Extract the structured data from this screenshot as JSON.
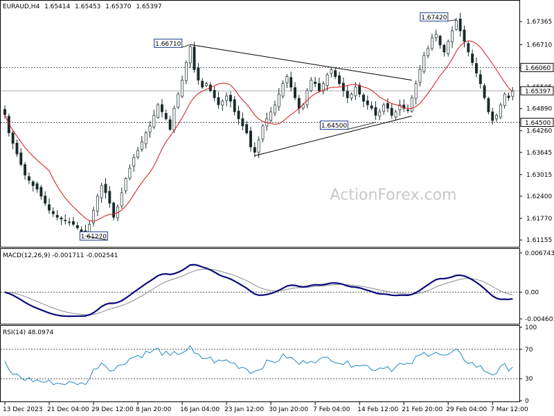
{
  "chart_data": {
    "type": "candlestick",
    "symbol": "EURAUD,H4",
    "ohlc": [
      "1.65414",
      "1.65453",
      "1.65370",
      "1.65397"
    ],
    "watermark": "ActionForex.com",
    "price_pane": {
      "ylim": [
        1.61,
        1.679
      ],
      "y_ticks": [
        "1.67365",
        "1.66710",
        "1.66060",
        "1.65505",
        "1.64890",
        "1.64260",
        "1.63645",
        "1.63015",
        "1.62400",
        "1.61770",
        "1.61155"
      ],
      "dashed_levels": [
        1.6606,
        1.645
      ],
      "current_price": 1.65397,
      "level_labels": [
        {
          "text": "1.66060",
          "value": 1.6606
        },
        {
          "text": "1.65397",
          "value": 1.65397
        },
        {
          "text": "1.64500",
          "value": 1.645
        }
      ],
      "annotations": [
        {
          "text": "1.67420",
          "bar": 112,
          "value": 1.6742
        },
        {
          "text": "1.66710",
          "bar": 46,
          "value": 1.6671
        },
        {
          "text": "1.64500",
          "bar": 92,
          "value": 1.645
        },
        {
          "text": "1.61270",
          "bar": 20,
          "value": 1.6127
        }
      ],
      "trendlines": [
        {
          "from": [
            46,
            1.6671
          ],
          "to": [
            101,
            1.657
          ]
        },
        {
          "from": [
            62,
            1.6355
          ],
          "to": [
            101,
            1.6468
          ]
        }
      ],
      "close": [
        1.6472,
        1.642,
        1.639,
        1.636,
        1.633,
        1.63,
        1.6285,
        1.627,
        1.626,
        1.624,
        1.622,
        1.62,
        1.619,
        1.618,
        1.6175,
        1.617,
        1.6165,
        1.616,
        1.615,
        1.614,
        1.6135,
        1.616,
        1.62,
        1.624,
        1.627,
        1.625,
        1.622,
        1.618,
        1.621,
        1.625,
        1.629,
        1.632,
        1.635,
        1.637,
        1.6395,
        1.642,
        1.644,
        1.647,
        1.65,
        1.648,
        1.646,
        1.643,
        1.649,
        1.653,
        1.657,
        1.662,
        1.6665,
        1.66,
        1.657,
        1.655,
        1.656,
        1.654,
        1.652,
        1.65,
        1.651,
        1.6525,
        1.651,
        1.648,
        1.646,
        1.644,
        1.642,
        1.638,
        1.6365,
        1.64,
        1.644,
        1.646,
        1.648,
        1.65,
        1.653,
        1.656,
        1.658,
        1.655,
        1.652,
        1.649,
        1.65,
        1.654,
        1.657,
        1.656,
        1.654,
        1.656,
        1.6585,
        1.66,
        1.658,
        1.656,
        1.654,
        1.652,
        1.653,
        1.655,
        1.653,
        1.651,
        1.65,
        1.649,
        1.647,
        1.648,
        1.65,
        1.649,
        1.647,
        1.648,
        1.65,
        1.649,
        1.6485,
        1.652,
        1.656,
        1.66,
        1.664,
        1.666,
        1.669,
        1.67,
        1.667,
        1.665,
        1.668,
        1.671,
        1.674,
        1.671,
        1.668,
        1.665,
        1.662,
        1.659,
        1.656,
        1.652,
        1.648,
        1.6455,
        1.647,
        1.65,
        1.653,
        1.652,
        1.654
      ]
    },
    "macd_pane": {
      "label": "MACD(12,26,9) -0.001711 -0.002541",
      "ylim": [
        -0.0052,
        0.0072
      ],
      "y_ticks": [
        0.006743,
        0.0,
        -0.004603
      ],
      "y_tick_labels": [
        "0.006743",
        "0.00",
        "-0.004603"
      ],
      "zero_line": 0.0
    },
    "rsi_pane": {
      "label": "RSI(14) 48.0974",
      "ylim": [
        0,
        100
      ],
      "y_ticks": [
        100,
        70,
        30,
        0
      ],
      "y_tick_labels": [
        "100",
        "70",
        "30",
        "0"
      ],
      "dashed_levels": [
        70,
        30
      ]
    },
    "x_labels": [
      {
        "text": "13 Dec 2023",
        "bar": 0
      },
      {
        "text": "21 Dec 04:00",
        "bar": 11
      },
      {
        "text": "29 Dec 12:00",
        "bar": 22
      },
      {
        "text": "8 Jan 20:00",
        "bar": 33
      },
      {
        "text": "16 Jan 04:00",
        "bar": 44
      },
      {
        "text": "23 Jan 12:00",
        "bar": 55
      },
      {
        "text": "30 Jan 20:00",
        "bar": 66
      },
      {
        "text": "7 Feb 04:00",
        "bar": 77
      },
      {
        "text": "14 Feb 12:00",
        "bar": 88
      },
      {
        "text": "21 Feb 20:00",
        "bar": 99
      },
      {
        "text": "29 Feb 04:00",
        "bar": 110
      },
      {
        "text": "7 Mar 12:00",
        "bar": 121
      }
    ],
    "colors": {
      "candle": "#1a2a2a",
      "ma": "#d01515",
      "macd": "#0a0a7a",
      "signal": "#888888",
      "rsi": "#1e8bc3",
      "grid_dash": "#555555"
    }
  }
}
